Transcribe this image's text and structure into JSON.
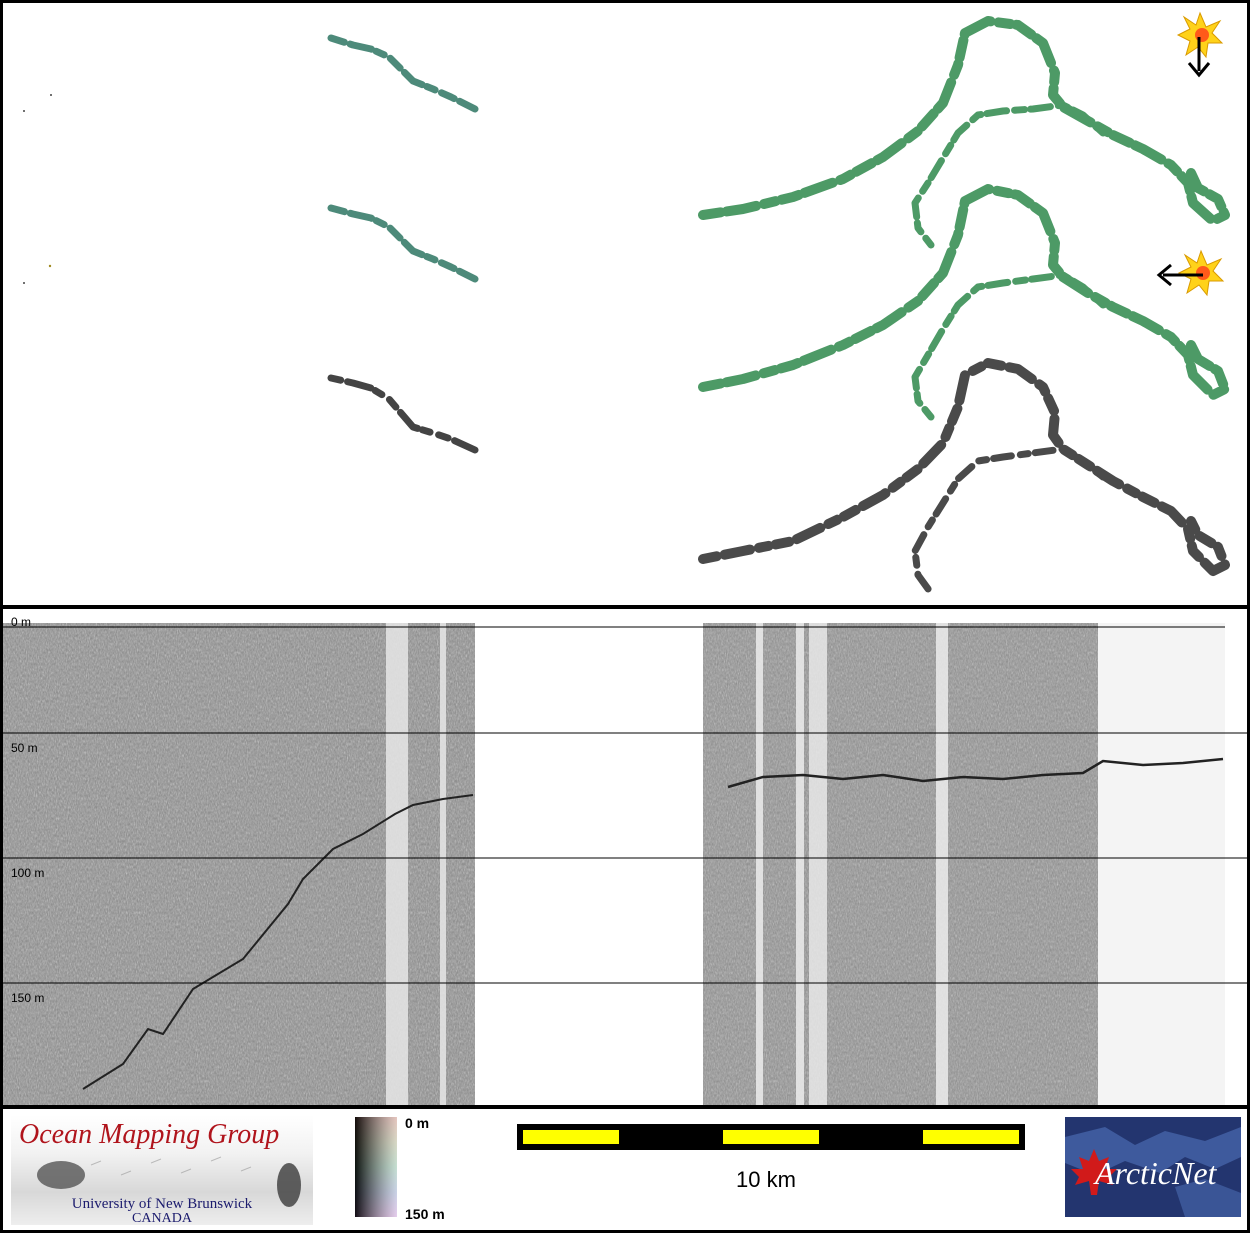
{
  "depth_labels": {
    "d0": "0 m",
    "d50": "50 m",
    "d100": "100 m",
    "d150": "150 m"
  },
  "logo_omg": {
    "title": "Ocean Mapping Group",
    "university": "University of New Brunswick",
    "country": "CANADA"
  },
  "colorbar": {
    "top_label": "0 m",
    "bottom_label": "150 m"
  },
  "scale": {
    "label": "10 km"
  },
  "logo_arcticnet": {
    "text": "ArcticNet"
  },
  "colors": {
    "track_green": "#4d9a66",
    "track_gray": "#4a4a4a",
    "scale_yellow": "#ffff00",
    "brand_red": "#b0141c",
    "brand_navy": "#23356f"
  },
  "icons": [
    "sun-icon",
    "arrow-down-icon",
    "arrow-left-icon",
    "maple-leaf-icon"
  ]
}
